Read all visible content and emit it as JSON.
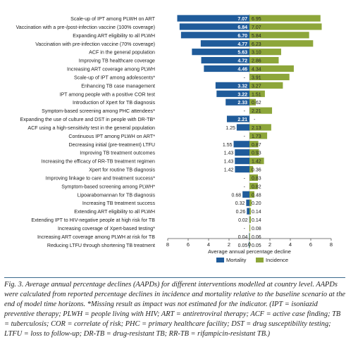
{
  "chart_data": {
    "type": "bar",
    "orientation": "horizontal-diverging",
    "categories": [
      "Scale-up of IPT among PLWH on ART",
      "Vaccination with a pre-/post-infection vaccine (100% coverage)",
      "Expanding ART eligibility to all PLWH",
      "Vaccination with pre-infection vaccine (70% coverage)",
      "ACF in the general population",
      "Improving TB healthcare coverage",
      "Increasing ART coverage among PLWH",
      "Scale-up of IPT among adolescents*",
      "Enhancing TB case management",
      "IPT among people with a positive COR test",
      "Introduction of Xpert for TB diagnosis",
      "Symptom-based screening among PHC attendees*",
      "Expanding the use of culture and DST in people with DR-TB*",
      "ACF using a high-sensitivity test in the general population",
      "Continuous IPT among PLWH on ART*",
      "Decreasing initial (pre-treatment) LTFU",
      "Improving TB treatment outcomes",
      "Increasing the efficacy of RR-TB treatment regimen",
      "Xpert for routine TB diagnosis",
      "Improving linkage to care and treatment success*",
      "Symptom-based screening among PLWH*",
      "Lipoarabomannan for TB diagnosis",
      "Increasing TB treatment success",
      "Extending ART eligibility to all PLWH",
      "Extending IPT to HIV-negative people at high risk for TB",
      "Increasing coverage of Xpert-based testing*",
      "Increasing ART coverage among PLWH at risk for TB",
      "Reducing LTFU through shortening TB treatment"
    ],
    "series": [
      {
        "name": "Mortality",
        "color": "#1f5b9a",
        "values": [
          7.07,
          6.84,
          6.7,
          4.77,
          5.63,
          4.72,
          4.46,
          null,
          3.32,
          3.22,
          2.33,
          null,
          2.21,
          1.25,
          null,
          1.55,
          1.43,
          1.43,
          1.42,
          null,
          null,
          0.68,
          0.32,
          0.26,
          0.02,
          null,
          0.04,
          0.05
        ]
      },
      {
        "name": "Incidence",
        "color": "#8da63a",
        "values": [
          6.95,
          7.07,
          5.84,
          6.23,
          3.1,
          2.86,
          4.34,
          3.91,
          3.27,
          1.51,
          0.62,
          2.21,
          null,
          2.13,
          1.73,
          0.87,
          0.93,
          1.42,
          0.36,
          0.83,
          0.82,
          0.48,
          0.2,
          0.14,
          0.14,
          0.08,
          0.06,
          0.05
        ]
      }
    ],
    "missing_label": "-",
    "xlabel": "Average annual percentage decline",
    "xticks": [
      "8",
      "6",
      "4",
      "2",
      "0",
      "2",
      "4",
      "6",
      "8"
    ],
    "xlim": [
      -8,
      8
    ],
    "legend_position": "bottom-right"
  },
  "caption": "Fig. 3. Average annual percentage declines (AAPDs) for different interventions modelled at country level. AAPDs were calculated from reported percentage declines in incidence and mortality relative to the baseline scenario at the end of model time horizons. *Missing result as impact was not estimated for the indicator. (IPT = isoniazid preventive therapy; PLWH = people living with HIV; ART = antiretroviral therapy; ACF = active case finding; TB = tuberculosis; COR = correlate of risk; PHC = primary healthcare facility; DST = drug susceptibility testing; LTFU = loss to follow-up; DR-TB = drug-resistant TB; RR-TB = rifampicin-resistant TB.)"
}
